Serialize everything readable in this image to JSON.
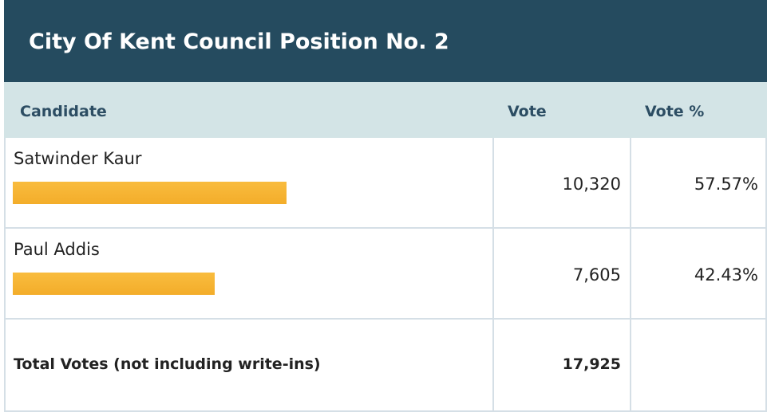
{
  "title": "City Of Kent Council Position No. 2",
  "table": {
    "headers": [
      "Candidate",
      "Vote",
      "Vote %"
    ],
    "rows": [
      {
        "candidate": "Satwinder Kaur",
        "vote": "10,320",
        "percent": 57.57,
        "percent_label": "57.57%"
      },
      {
        "candidate": "Paul Addis",
        "vote": "7,605",
        "percent": 42.43,
        "percent_label": "42.43%"
      }
    ],
    "total": {
      "label": "Total Votes (not including write-ins)",
      "vote": "17,925"
    }
  }
}
